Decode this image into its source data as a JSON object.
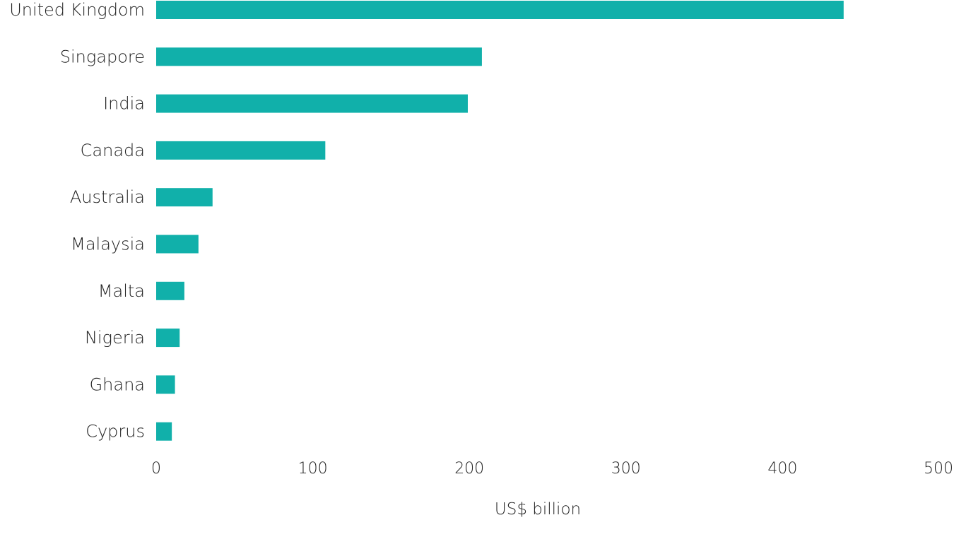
{
  "chart_data": {
    "type": "bar",
    "orientation": "horizontal",
    "categories": [
      "United Kingdom",
      "Singapore",
      "India",
      "Canada",
      "Australia",
      "Malaysia",
      "Malta",
      "Nigeria",
      "Ghana",
      "Cyprus"
    ],
    "values": [
      439,
      208,
      199,
      108,
      36,
      27,
      18,
      15,
      12,
      10
    ],
    "xlabel": "US$ billion",
    "ylabel": "",
    "xlim": [
      0,
      500
    ],
    "xticks": [
      0,
      100,
      200,
      300,
      400,
      500
    ],
    "grid": false,
    "legend": "none",
    "colors": {
      "bar": "#11b0aa",
      "text": "#222222"
    }
  }
}
